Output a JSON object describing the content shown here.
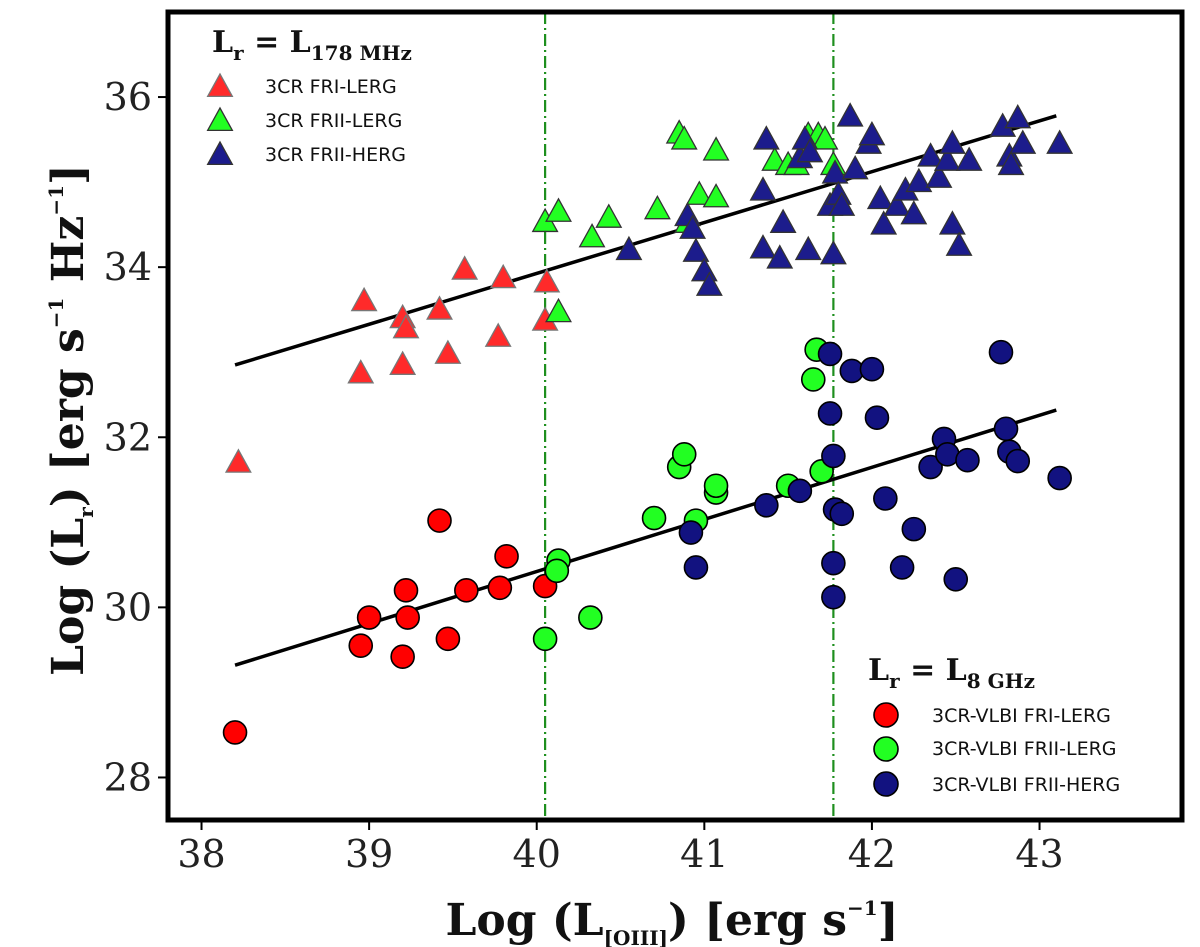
{
  "chart_data": {
    "type": "scatter",
    "x_axis": {
      "label_prefix": "Log (L",
      "label_sub": "[OIII]",
      "label_suffix": ")  [erg s",
      "label_sup": "−1",
      "label_end": "]",
      "xlim": [
        37.8,
        43.85
      ],
      "ticks": [
        38,
        39,
        40,
        41,
        42,
        43
      ],
      "tick_labels": [
        "38",
        "39",
        "40",
        "41",
        "42",
        "43"
      ]
    },
    "y_axis": {
      "label_prefix": "Log (L",
      "label_sub": "r",
      "label_suffix": ")  [erg s",
      "label_sup1": "−1",
      "label_mid": " Hz",
      "label_sup2": "−1",
      "label_end": "]",
      "ylim": [
        27.5,
        37.0
      ],
      "ticks": [
        28,
        30,
        32,
        34,
        36
      ],
      "tick_labels": [
        "28",
        "30",
        "32",
        "34",
        "36"
      ]
    },
    "vertical_lines": [
      {
        "x": 40.05,
        "style": "dash-dot",
        "color": "#1e8f1e"
      },
      {
        "x": 41.77,
        "style": "dash-dot",
        "color": "#1e8f1e"
      }
    ],
    "fit_lines": [
      {
        "name": "fit-178MHz",
        "x": [
          38.2,
          43.1
        ],
        "y": [
          32.85,
          35.78
        ],
        "color": "#000000"
      },
      {
        "name": "fit-8GHz",
        "x": [
          38.2,
          43.1
        ],
        "y": [
          29.32,
          32.32
        ],
        "color": "#000000"
      }
    ],
    "legends": [
      {
        "title_main": "L",
        "title_sub": "r",
        "title_eq": " = L",
        "title_sub2": "178 MHz",
        "position": "top-left",
        "entries": [
          {
            "label": "3CR FRI-LERG",
            "marker": "triangle",
            "color": "#ff2a2a"
          },
          {
            "label": "3CR FRII-LERG",
            "marker": "triangle",
            "color": "#22ff22"
          },
          {
            "label": "3CR FRII-HERG",
            "marker": "triangle",
            "color": "#1c1c8c"
          }
        ]
      },
      {
        "title_main": "L",
        "title_sub": "r",
        "title_eq": " = L",
        "title_sub2": "8 GHz",
        "position": "bottom-right",
        "entries": [
          {
            "label": "3CR-VLBI FRI-LERG",
            "marker": "circle",
            "color": "#ff0000"
          },
          {
            "label": "3CR-VLBI FRII-LERG",
            "marker": "circle",
            "color": "#22ff22"
          },
          {
            "label": "3CR-VLBI FRII-HERG",
            "marker": "circle",
            "color": "#121280"
          }
        ]
      }
    ],
    "series": [
      {
        "name": "3CR FRI-LERG",
        "marker": "triangle",
        "color": "#ff2a2a",
        "points": [
          [
            38.22,
            31.7
          ],
          [
            38.97,
            33.6
          ],
          [
            38.95,
            32.75
          ],
          [
            39.2,
            33.4
          ],
          [
            39.22,
            33.28
          ],
          [
            39.2,
            32.85
          ],
          [
            39.42,
            33.5
          ],
          [
            39.47,
            32.98
          ],
          [
            39.57,
            33.97
          ],
          [
            39.77,
            33.18
          ],
          [
            39.8,
            33.87
          ],
          [
            40.05,
            33.37
          ],
          [
            40.06,
            33.82
          ]
        ]
      },
      {
        "name": "3CR FRII-LERG",
        "marker": "triangle",
        "color": "#22ff22",
        "points": [
          [
            40.05,
            34.53
          ],
          [
            40.13,
            34.65
          ],
          [
            40.13,
            33.47
          ],
          [
            40.33,
            34.35
          ],
          [
            40.43,
            34.58
          ],
          [
            40.72,
            34.68
          ],
          [
            40.85,
            35.57
          ],
          [
            40.88,
            35.5
          ],
          [
            40.9,
            34.52
          ],
          [
            40.97,
            34.85
          ],
          [
            41.07,
            35.37
          ],
          [
            41.07,
            34.82
          ],
          [
            41.42,
            35.25
          ],
          [
            41.5,
            35.2
          ],
          [
            41.55,
            35.2
          ],
          [
            41.62,
            35.55
          ],
          [
            41.68,
            35.55
          ],
          [
            41.72,
            35.5
          ],
          [
            41.77,
            35.2
          ]
        ]
      },
      {
        "name": "3CR FRII-HERG",
        "marker": "triangle",
        "color": "#1c1c8c",
        "points": [
          [
            40.55,
            34.2
          ],
          [
            40.9,
            34.6
          ],
          [
            40.93,
            34.45
          ],
          [
            40.95,
            34.18
          ],
          [
            41.0,
            33.95
          ],
          [
            41.03,
            33.78
          ],
          [
            41.35,
            34.9
          ],
          [
            41.37,
            35.5
          ],
          [
            41.35,
            34.22
          ],
          [
            41.45,
            34.1
          ],
          [
            41.47,
            34.52
          ],
          [
            41.57,
            35.28
          ],
          [
            41.6,
            35.5
          ],
          [
            41.62,
            34.2
          ],
          [
            41.63,
            35.35
          ],
          [
            41.75,
            34.72
          ],
          [
            41.77,
            34.15
          ],
          [
            41.78,
            35.1
          ],
          [
            41.8,
            34.85
          ],
          [
            41.82,
            34.72
          ],
          [
            41.87,
            35.77
          ],
          [
            41.9,
            35.15
          ],
          [
            41.98,
            35.45
          ],
          [
            42.0,
            35.55
          ],
          [
            42.05,
            34.8
          ],
          [
            42.07,
            34.5
          ],
          [
            42.15,
            34.72
          ],
          [
            42.2,
            34.9
          ],
          [
            42.25,
            34.62
          ],
          [
            42.28,
            35.0
          ],
          [
            42.35,
            35.3
          ],
          [
            42.4,
            35.05
          ],
          [
            42.45,
            35.25
          ],
          [
            42.48,
            34.5
          ],
          [
            42.48,
            35.45
          ],
          [
            42.52,
            34.25
          ],
          [
            42.58,
            35.25
          ],
          [
            42.78,
            35.65
          ],
          [
            42.82,
            35.3
          ],
          [
            42.83,
            35.2
          ],
          [
            42.87,
            35.75
          ],
          [
            42.9,
            35.45
          ],
          [
            43.12,
            35.45
          ]
        ]
      },
      {
        "name": "3CR-VLBI FRI-LERG",
        "marker": "circle",
        "color": "#ff0000",
        "points": [
          [
            38.2,
            28.53
          ],
          [
            38.95,
            29.55
          ],
          [
            39.0,
            29.88
          ],
          [
            39.2,
            29.42
          ],
          [
            39.22,
            30.2
          ],
          [
            39.23,
            29.88
          ],
          [
            39.42,
            31.02
          ],
          [
            39.47,
            29.63
          ],
          [
            39.58,
            30.2
          ],
          [
            39.78,
            30.23
          ],
          [
            39.82,
            30.6
          ],
          [
            40.05,
            30.25
          ]
        ]
      },
      {
        "name": "3CR-VLBI FRII-LERG",
        "marker": "circle",
        "color": "#22ff22",
        "points": [
          [
            40.05,
            29.63
          ],
          [
            40.13,
            30.55
          ],
          [
            40.12,
            30.43
          ],
          [
            40.32,
            29.88
          ],
          [
            40.7,
            31.05
          ],
          [
            40.85,
            31.65
          ],
          [
            40.88,
            31.8
          ],
          [
            40.95,
            31.02
          ],
          [
            41.07,
            31.35
          ],
          [
            41.07,
            31.43
          ],
          [
            41.5,
            31.43
          ],
          [
            41.65,
            32.68
          ],
          [
            41.67,
            33.03
          ],
          [
            41.7,
            31.6
          ]
        ]
      },
      {
        "name": "3CR-VLBI FRII-HERG",
        "marker": "circle",
        "color": "#121280",
        "points": [
          [
            40.92,
            30.88
          ],
          [
            40.95,
            30.47
          ],
          [
            41.37,
            31.2
          ],
          [
            41.57,
            31.37
          ],
          [
            41.75,
            32.98
          ],
          [
            41.75,
            32.28
          ],
          [
            41.77,
            31.78
          ],
          [
            41.78,
            31.15
          ],
          [
            41.77,
            30.52
          ],
          [
            41.77,
            30.12
          ],
          [
            41.82,
            31.1
          ],
          [
            41.88,
            32.78
          ],
          [
            42.0,
            32.8
          ],
          [
            42.03,
            32.23
          ],
          [
            42.08,
            31.28
          ],
          [
            42.18,
            30.47
          ],
          [
            42.25,
            30.92
          ],
          [
            42.35,
            31.65
          ],
          [
            42.43,
            31.98
          ],
          [
            42.45,
            31.8
          ],
          [
            42.5,
            30.33
          ],
          [
            42.57,
            31.73
          ],
          [
            42.77,
            33.0
          ],
          [
            42.8,
            32.1
          ],
          [
            42.82,
            31.83
          ],
          [
            42.87,
            31.72
          ],
          [
            43.12,
            31.52
          ]
        ]
      }
    ]
  }
}
